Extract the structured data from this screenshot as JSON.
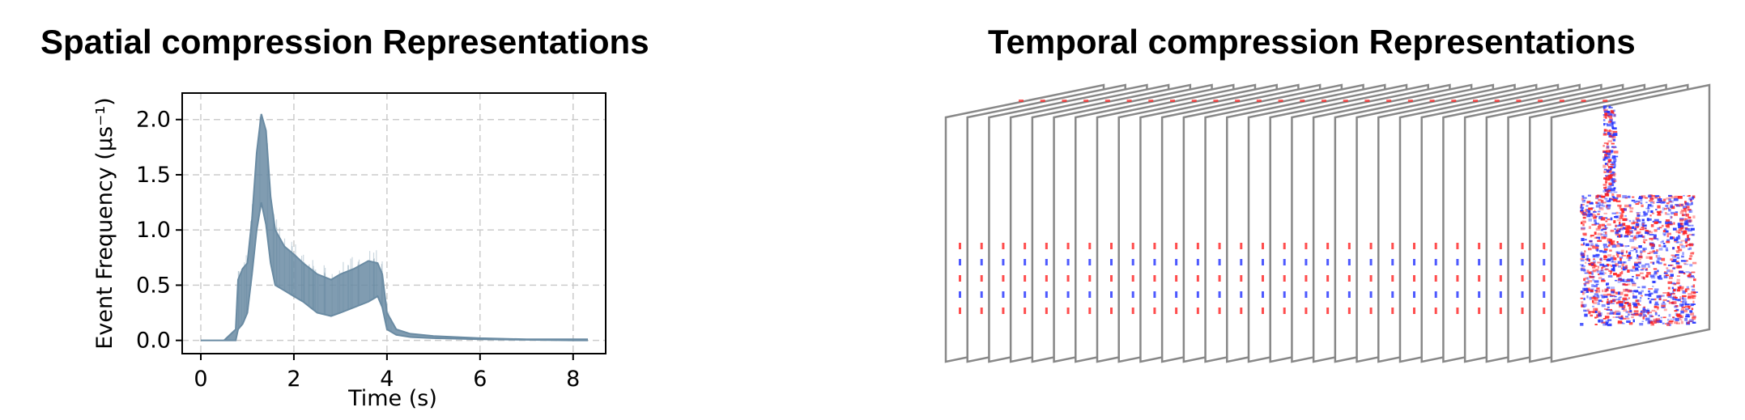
{
  "panels": {
    "left_title": "Spatial compression Representations",
    "right_title": "Temporal compression Representations"
  },
  "chart_data": [
    {
      "type": "area",
      "title": "Spatial compression Representations",
      "xlabel": "Time (s)",
      "ylabel": "Event Frequency (μs⁻¹)",
      "xlim": [
        -0.4,
        8.7
      ],
      "ylim": [
        -0.12,
        2.24
      ],
      "xticks": [
        "0",
        "2",
        "4",
        "6",
        "8"
      ],
      "yticks": [
        "0.0",
        "0.5",
        "1.0",
        "1.5",
        "2.0"
      ],
      "grid": true,
      "series": [
        {
          "color": "#6a8ba3",
          "x": [
            0,
            0.5,
            0.75,
            0.8,
            0.9,
            1.0,
            1.1,
            1.2,
            1.3,
            1.4,
            1.5,
            1.6,
            1.8,
            2.0,
            2.2,
            2.5,
            2.8,
            3.0,
            3.3,
            3.6,
            3.8,
            3.9,
            4.0,
            4.2,
            4.5,
            5.0,
            6.0,
            7.0,
            8.0,
            8.3
          ],
          "y_low": [
            0,
            0,
            0,
            0.1,
            0.15,
            0.25,
            0.6,
            1.0,
            1.25,
            1.05,
            0.7,
            0.5,
            0.45,
            0.4,
            0.35,
            0.25,
            0.22,
            0.25,
            0.3,
            0.35,
            0.4,
            0.3,
            0.1,
            0.05,
            0.03,
            0.02,
            0.01,
            0.005,
            0,
            0
          ],
          "y_high": [
            0,
            0,
            0.1,
            0.55,
            0.65,
            0.7,
            1.1,
            1.7,
            2.05,
            1.9,
            1.3,
            1.0,
            0.85,
            0.78,
            0.7,
            0.6,
            0.55,
            0.6,
            0.65,
            0.72,
            0.7,
            0.6,
            0.25,
            0.1,
            0.06,
            0.04,
            0.02,
            0.01,
            0.01,
            0.01
          ]
        }
      ]
    },
    {
      "type": "table",
      "title": "Temporal compression Representations",
      "frames": 29,
      "description_colors": {
        "frame_border": "#888888",
        "positive": "#ff2020",
        "negative": "#2030ff"
      }
    }
  ]
}
